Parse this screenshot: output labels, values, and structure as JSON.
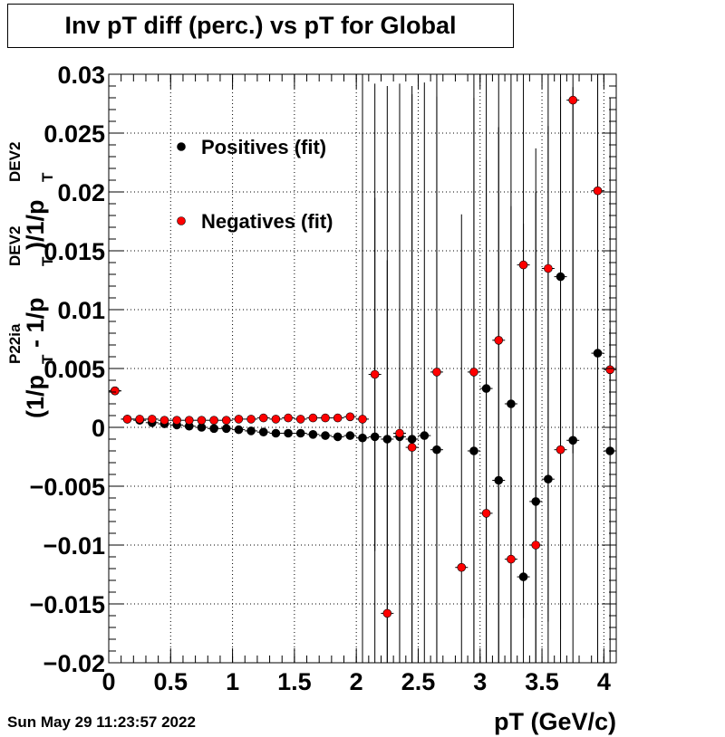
{
  "chart_data": {
    "type": "scatter",
    "title": "Inv pT diff (perc.) vs pT for Global",
    "xlabel": "pT (GeV/c)",
    "ylabel_parts": [
      "(1/p",
      "P22ia",
      "T",
      " - 1/p",
      "DEV2",
      "T",
      ")/1/p",
      "DEV2",
      "T"
    ],
    "xlim": [
      0,
      4.1
    ],
    "ylim": [
      -0.02,
      0.03
    ],
    "xticks": [
      0,
      0.5,
      1,
      1.5,
      2,
      2.5,
      3,
      3.5,
      4
    ],
    "xtick_labels": [
      "0",
      "0.5",
      "1",
      "1.5",
      "2",
      "2.5",
      "3",
      "3.5",
      "4"
    ],
    "yticks": [
      -0.02,
      -0.015,
      -0.01,
      -0.005,
      0,
      0.005,
      0.01,
      0.015,
      0.02,
      0.025,
      0.03
    ],
    "ytick_labels": [
      "−0.02",
      "−0.015",
      "−0.01",
      "−0.005",
      "0",
      "0.005",
      "0.01",
      "0.015",
      "0.02",
      "0.025",
      "0.03"
    ],
    "grid": true,
    "legend_position": "top-left",
    "series": [
      {
        "name": "Positives (fit)",
        "color": "#000000",
        "points": [
          [
            0.05,
            0.0031,
            0.0003
          ],
          [
            0.15,
            0.0007,
            0.0002
          ],
          [
            0.25,
            0.0006,
            0.0002
          ],
          [
            0.35,
            0.0004,
            0.0002
          ],
          [
            0.45,
            0.0003,
            0.0002
          ],
          [
            0.55,
            0.0002,
            0.0002
          ],
          [
            0.65,
            0.0001,
            0.0002
          ],
          [
            0.75,
            0.0,
            0.0002
          ],
          [
            0.85,
            -0.0001,
            0.0002
          ],
          [
            0.95,
            -0.0001,
            0.0002
          ],
          [
            1.05,
            -0.0002,
            0.0002
          ],
          [
            1.15,
            -0.0003,
            0.0002
          ],
          [
            1.25,
            -0.0004,
            0.0002
          ],
          [
            1.35,
            -0.0005,
            0.0002
          ],
          [
            1.45,
            -0.0005,
            0.0002
          ],
          [
            1.55,
            -0.0005,
            0.0002
          ],
          [
            1.65,
            -0.0006,
            0.0002
          ],
          [
            1.75,
            -0.0007,
            0.0002
          ],
          [
            1.85,
            -0.0008,
            0.0002
          ],
          [
            1.95,
            -0.0007,
            0.0002
          ],
          [
            2.05,
            -0.0009,
            0.03
          ],
          [
            2.15,
            -0.0008,
            0.03
          ],
          [
            2.25,
            -0.001,
            0.03
          ],
          [
            2.35,
            -0.0008,
            0.03
          ],
          [
            2.45,
            -0.001,
            0.03
          ],
          [
            2.55,
            -0.0007,
            0.03
          ],
          [
            2.65,
            -0.0019,
            0.03
          ],
          [
            2.95,
            -0.002,
            0.03
          ],
          [
            3.05,
            0.0033,
            0.03
          ],
          [
            3.15,
            -0.0045,
            0.03
          ],
          [
            3.25,
            0.002,
            0.03
          ],
          [
            3.35,
            -0.0127,
            0.03
          ],
          [
            3.45,
            -0.0063,
            0.03
          ],
          [
            3.55,
            -0.0044,
            0.03
          ],
          [
            3.65,
            0.0128,
            0.03
          ],
          [
            3.75,
            -0.0011,
            0.03
          ],
          [
            3.95,
            0.0063,
            0.03
          ],
          [
            4.05,
            -0.002,
            0.03
          ]
        ]
      },
      {
        "name": "Negatives (fit)",
        "color": "#ff0000",
        "points": [
          [
            0.05,
            0.0031,
            0.0003
          ],
          [
            0.15,
            0.0007,
            0.0002
          ],
          [
            0.25,
            0.0007,
            0.0002
          ],
          [
            0.35,
            0.0007,
            0.0002
          ],
          [
            0.45,
            0.0006,
            0.0002
          ],
          [
            0.55,
            0.0006,
            0.0002
          ],
          [
            0.65,
            0.0006,
            0.0002
          ],
          [
            0.75,
            0.0006,
            0.0002
          ],
          [
            0.85,
            0.0006,
            0.0002
          ],
          [
            0.95,
            0.0006,
            0.0002
          ],
          [
            1.05,
            0.0007,
            0.0002
          ],
          [
            1.15,
            0.0007,
            0.0002
          ],
          [
            1.25,
            0.0008,
            0.0002
          ],
          [
            1.35,
            0.0007,
            0.0002
          ],
          [
            1.45,
            0.0008,
            0.0002
          ],
          [
            1.55,
            0.0007,
            0.0002
          ],
          [
            1.65,
            0.0008,
            0.0002
          ],
          [
            1.75,
            0.0008,
            0.0002
          ],
          [
            1.85,
            0.0008,
            0.0002
          ],
          [
            1.95,
            0.0009,
            0.0002
          ],
          [
            2.05,
            0.0007,
            0.03
          ],
          [
            2.15,
            0.0045,
            0.015
          ],
          [
            2.25,
            -0.0158,
            0.03
          ],
          [
            2.35,
            -0.0005,
            0.02
          ],
          [
            2.45,
            -0.0017,
            0.03
          ],
          [
            2.65,
            0.0047,
            0.03
          ],
          [
            2.85,
            -0.0119,
            0.03
          ],
          [
            2.95,
            0.0047,
            0.03
          ],
          [
            3.05,
            -0.0073,
            0.03
          ],
          [
            3.15,
            0.0074,
            0.03
          ],
          [
            3.25,
            -0.0112,
            0.03
          ],
          [
            3.35,
            0.0138,
            0.03
          ],
          [
            3.45,
            -0.01,
            0.03
          ],
          [
            3.55,
            0.0135,
            0.03
          ],
          [
            3.65,
            -0.0019,
            0.03
          ],
          [
            3.75,
            0.0278,
            0.03
          ],
          [
            3.95,
            0.0201,
            0.03
          ],
          [
            4.05,
            0.0049,
            0.0035
          ]
        ]
      }
    ],
    "datestamp": "Sun May 29 11:23:57 2022"
  }
}
